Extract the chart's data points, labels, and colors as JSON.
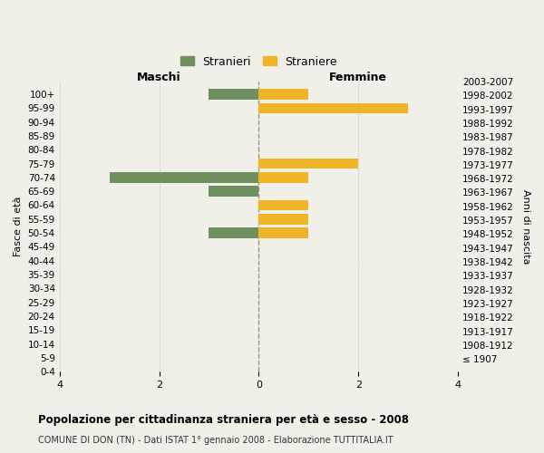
{
  "age_groups": [
    "0-4",
    "5-9",
    "10-14",
    "15-19",
    "20-24",
    "25-29",
    "30-34",
    "35-39",
    "40-44",
    "45-49",
    "50-54",
    "55-59",
    "60-64",
    "65-69",
    "70-74",
    "75-79",
    "80-84",
    "85-89",
    "90-94",
    "95-99",
    "100+"
  ],
  "birth_years": [
    "2003-2007",
    "1998-2002",
    "1993-1997",
    "1988-1992",
    "1983-1987",
    "1978-1982",
    "1973-1977",
    "1968-1972",
    "1963-1967",
    "1958-1962",
    "1953-1957",
    "1948-1952",
    "1943-1947",
    "1938-1942",
    "1933-1937",
    "1928-1932",
    "1923-1927",
    "1918-1922",
    "1913-1917",
    "1908-1912",
    "≤ 1907"
  ],
  "males": [
    1,
    0,
    0,
    0,
    0,
    0,
    3,
    1,
    0,
    0,
    1,
    0,
    0,
    0,
    0,
    0,
    0,
    0,
    0,
    0,
    0
  ],
  "females": [
    1,
    3,
    0,
    0,
    0,
    2,
    1,
    0,
    1,
    1,
    1,
    0,
    0,
    0,
    0,
    0,
    0,
    0,
    0,
    0,
    0
  ],
  "male_color": "#6e8f5e",
  "female_color": "#f0b429",
  "background_color": "#f0f0e8",
  "xlim": 4,
  "title": "Popolazione per cittadinanza straniera per età e sesso - 2008",
  "subtitle": "COMUNE DI DON (TN) - Dati ISTAT 1° gennaio 2008 - Elaborazione TUTTITALIA.IT",
  "ylabel_left": "Fasce di età",
  "ylabel_right": "Anni di nascita",
  "xlabel_left": "Maschi",
  "xlabel_right": "Femmine",
  "legend_stranieri": "Stranieri",
  "legend_straniere": "Straniere",
  "bar_height": 0.75
}
